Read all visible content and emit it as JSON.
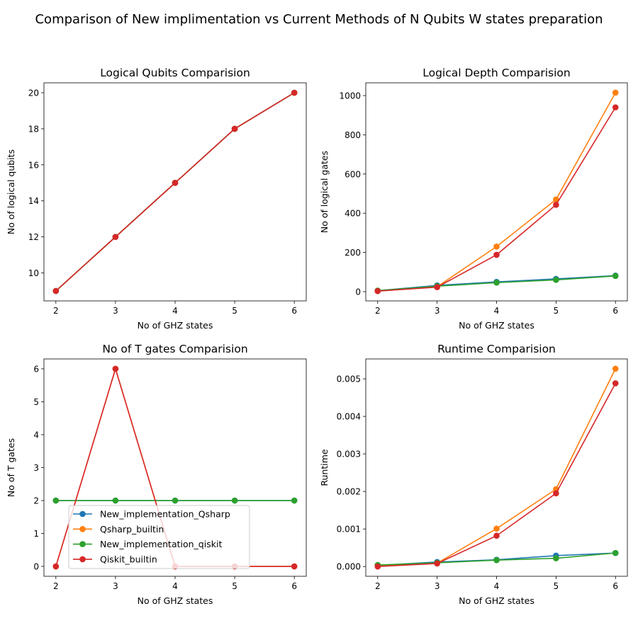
{
  "figure": {
    "title": "Comparison of New implimentation vs Current Methods of N Qubits W states preparation"
  },
  "colors": {
    "New_implementation_Qsharp": "#1f77b4",
    "Qsharp_builtin": "#ff7f0e",
    "New_implementation_qiskit": "#2ca02c",
    "Qiskit_builtin": "#d62728"
  },
  "chart_data": [
    {
      "type": "line",
      "title": "Logical Qubits Comparision",
      "xlabel": "No of GHZ states",
      "ylabel": "No of logical qubits",
      "x": [
        2,
        3,
        4,
        5,
        6
      ],
      "xlim": [
        1.8,
        6.2
      ],
      "ylim": [
        8.45,
        20.55
      ],
      "xticks": [
        "2",
        "3",
        "4",
        "5",
        "6"
      ],
      "yticks": [
        "10",
        "12",
        "14",
        "16",
        "18",
        "20"
      ],
      "ytick_values": [
        10,
        12,
        14,
        16,
        18,
        20
      ],
      "series": [
        {
          "name": "New_implementation_Qsharp",
          "values": [
            9,
            12,
            15,
            18,
            20
          ]
        },
        {
          "name": "Qsharp_builtin",
          "values": [
            9,
            12,
            15,
            18,
            20
          ]
        },
        {
          "name": "New_implementation_qiskit",
          "values": [
            9,
            12,
            15,
            18,
            20
          ]
        },
        {
          "name": "Qiskit_builtin",
          "values": [
            9,
            12,
            15,
            18,
            20
          ]
        }
      ],
      "legend": null
    },
    {
      "type": "line",
      "title": "Logical Depth Comparision",
      "xlabel": "No of GHZ states",
      "ylabel": "No of logical gates",
      "x": [
        2,
        3,
        4,
        5,
        6
      ],
      "xlim": [
        1.8,
        6.2
      ],
      "ylim": [
        -47,
        1065
      ],
      "xticks": [
        "2",
        "3",
        "4",
        "5",
        "6"
      ],
      "yticks": [
        "0",
        "200",
        "400",
        "600",
        "800",
        "1000"
      ],
      "ytick_values": [
        0,
        200,
        400,
        600,
        800,
        1000
      ],
      "series": [
        {
          "name": "New_implementation_Qsharp",
          "values": [
            5,
            32,
            50,
            65,
            82
          ]
        },
        {
          "name": "Qsharp_builtin",
          "values": [
            5,
            25,
            230,
            470,
            1015
          ]
        },
        {
          "name": "New_implementation_qiskit",
          "values": [
            5,
            28,
            46,
            60,
            80
          ]
        },
        {
          "name": "Qiskit_builtin",
          "values": [
            3,
            23,
            188,
            443,
            940
          ]
        }
      ],
      "legend": null
    },
    {
      "type": "line",
      "title": "No of T gates Comparision",
      "xlabel": "No of GHZ states",
      "ylabel": "No of T gates",
      "x": [
        2,
        3,
        4,
        5,
        6
      ],
      "xlim": [
        1.8,
        6.2
      ],
      "ylim": [
        -0.3,
        6.3
      ],
      "xticks": [
        "2",
        "3",
        "4",
        "5",
        "6"
      ],
      "yticks": [
        "0",
        "1",
        "2",
        "3",
        "4",
        "5",
        "6"
      ],
      "ytick_values": [
        0,
        1,
        2,
        3,
        4,
        5,
        6
      ],
      "series": [
        {
          "name": "New_implementation_Qsharp",
          "values": [
            2,
            2,
            2,
            2,
            2
          ]
        },
        {
          "name": "Qsharp_builtin",
          "values": [
            0,
            6,
            0,
            0,
            0
          ]
        },
        {
          "name": "New_implementation_qiskit",
          "values": [
            2,
            2,
            2,
            2,
            2
          ]
        },
        {
          "name": "Qiskit_builtin",
          "values": [
            0,
            6,
            0,
            0,
            0
          ]
        }
      ],
      "legend": "lower-left",
      "legend_entries": [
        "New_implementation_Qsharp",
        "Qsharp_builtin",
        "New_implementation_qiskit",
        "Qiskit_builtin"
      ]
    },
    {
      "type": "line",
      "title": "Runtime Comparision",
      "xlabel": "No of GHZ states",
      "ylabel": "Runtime",
      "x": [
        2,
        3,
        4,
        5,
        6
      ],
      "xlim": [
        1.8,
        6.2
      ],
      "ylim": [
        -0.00026,
        0.00553
      ],
      "xticks": [
        "2",
        "3",
        "4",
        "5",
        "6"
      ],
      "yticks": [
        "0.000",
        "0.001",
        "0.002",
        "0.003",
        "0.004",
        "0.005"
      ],
      "ytick_values": [
        0,
        0.001,
        0.002,
        0.003,
        0.004,
        0.005
      ],
      "series": [
        {
          "name": "New_implementation_Qsharp",
          "values": [
            3e-05,
            0.00012,
            0.00018,
            0.00029,
            0.00036
          ]
        },
        {
          "name": "Qsharp_builtin",
          "values": [
            1e-05,
            9e-05,
            0.00101,
            0.00206,
            0.00527
          ]
        },
        {
          "name": "New_implementation_qiskit",
          "values": [
            4e-05,
            0.0001,
            0.00017,
            0.00022,
            0.00036
          ]
        },
        {
          "name": "Qiskit_builtin",
          "values": [
            0.0,
            8e-05,
            0.00082,
            0.00195,
            0.00488
          ]
        }
      ],
      "legend": null
    }
  ]
}
